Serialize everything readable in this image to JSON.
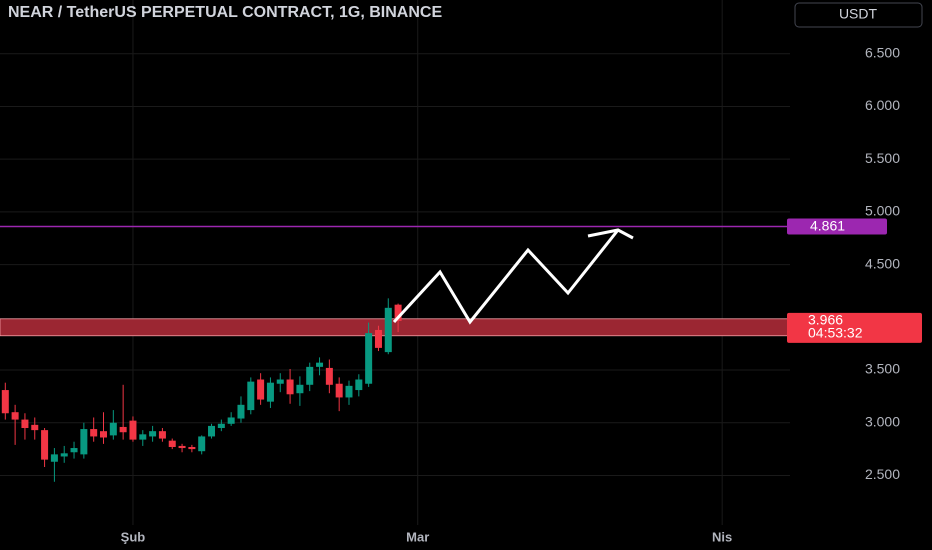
{
  "chart_data": {
    "type": "candlestick",
    "title": "NEAR / TetherUS PERPETUAL CONTRACT, 1G, BINANCE",
    "currency": "USDT",
    "categories": [
      null,
      null,
      null,
      null,
      null,
      null,
      null,
      null,
      null,
      null,
      null,
      null,
      null,
      "Şub",
      null,
      null,
      null,
      null,
      null,
      null,
      null,
      null,
      null,
      null,
      null,
      null,
      null,
      null,
      null,
      null,
      null,
      null,
      null,
      null,
      null,
      null,
      null,
      null,
      null,
      null,
      null,
      null,
      "Mar",
      null,
      null,
      null,
      null,
      null,
      null,
      null,
      null,
      null,
      null,
      null,
      null,
      null,
      null,
      null,
      null,
      null,
      null,
      null,
      null,
      null,
      null,
      null,
      null,
      null,
      null,
      null,
      null,
      null,
      null,
      "Nis"
    ],
    "open": [
      3.31,
      3.1,
      3.03,
      2.98,
      2.93,
      2.63,
      2.68,
      2.72,
      2.7,
      2.94,
      2.92,
      2.88,
      2.96,
      3.02,
      2.84,
      2.87,
      2.92,
      2.83,
      2.78,
      2.77,
      2.73,
      2.87,
      2.95,
      2.99,
      3.04,
      3.12,
      3.41,
      3.2,
      3.37,
      3.41,
      3.28,
      3.36,
      3.53,
      3.52,
      3.37,
      3.24,
      3.31,
      3.37,
      3.88,
      3.67,
      4.12,
      null,
      null,
      null,
      null,
      null,
      null,
      null,
      null,
      null,
      null,
      null,
      null,
      null,
      null,
      null,
      null,
      null,
      null,
      null,
      null,
      null,
      null,
      null,
      null,
      null,
      null,
      null,
      null,
      null,
      null,
      null,
      null,
      null
    ],
    "high": [
      3.38,
      3.17,
      3.09,
      3.05,
      2.95,
      2.76,
      2.78,
      2.82,
      3.0,
      3.05,
      3.1,
      3.12,
      3.36,
      3.06,
      2.93,
      2.97,
      2.95,
      2.85,
      2.8,
      2.79,
      2.88,
      2.99,
      3.03,
      3.1,
      3.25,
      3.43,
      3.47,
      3.43,
      3.47,
      3.51,
      3.44,
      3.57,
      3.62,
      3.6,
      3.43,
      3.4,
      3.46,
      3.95,
      3.92,
      4.18,
      4.13,
      null,
      null,
      null,
      null,
      null,
      null,
      null,
      null,
      null,
      null,
      null,
      null,
      null,
      null,
      null,
      null,
      null,
      null,
      null,
      null,
      null,
      null,
      null,
      null,
      null,
      null,
      null,
      null,
      null,
      null,
      null,
      null,
      null
    ],
    "low": [
      3.03,
      2.79,
      2.84,
      2.84,
      2.58,
      2.44,
      2.62,
      2.66,
      2.66,
      2.82,
      2.8,
      2.84,
      2.84,
      2.82,
      2.78,
      2.82,
      2.82,
      2.75,
      2.72,
      2.72,
      2.7,
      2.85,
      2.92,
      2.97,
      3.0,
      3.08,
      3.17,
      3.14,
      3.29,
      3.18,
      3.16,
      3.3,
      3.45,
      3.28,
      3.11,
      3.17,
      3.25,
      3.34,
      3.68,
      3.65,
      3.86,
      null,
      null,
      null,
      null,
      null,
      null,
      null,
      null,
      null,
      null,
      null,
      null,
      null,
      null,
      null,
      null,
      null,
      null,
      null,
      null,
      null,
      null,
      null,
      null,
      null,
      null,
      null,
      null,
      null,
      null,
      null,
      null,
      null
    ],
    "close": [
      3.09,
      3.03,
      2.95,
      2.93,
      2.65,
      2.7,
      2.71,
      2.76,
      2.94,
      2.87,
      2.86,
      3.0,
      2.91,
      2.84,
      2.89,
      2.92,
      2.85,
      2.77,
      2.76,
      2.75,
      2.87,
      2.97,
      2.99,
      3.05,
      3.17,
      3.39,
      3.22,
      3.38,
      3.41,
      3.27,
      3.36,
      3.53,
      3.57,
      3.36,
      3.24,
      3.35,
      3.41,
      3.85,
      3.71,
      4.09,
      3.966,
      null,
      null,
      null,
      null,
      null,
      null,
      null,
      null,
      null,
      null,
      null,
      null,
      null,
      null,
      null,
      null,
      null,
      null,
      null,
      null,
      null,
      null,
      null,
      null,
      null,
      null,
      null,
      null,
      null,
      null,
      null,
      null,
      null
    ],
    "up_color": "#089981",
    "down_color": "#f23645",
    "ylim": [
      2.03,
      7.01
    ],
    "yticks": [
      {
        "value": 2.5,
        "label": "2.500"
      },
      {
        "value": 3,
        "label": "3.000"
      },
      {
        "value": 3.5,
        "label": "3.500"
      },
      {
        "value": 4.5,
        "label": "4.500"
      },
      {
        "value": 5,
        "label": "5.000"
      },
      {
        "value": 5.5,
        "label": "5.500"
      },
      {
        "value": 6,
        "label": "6.000"
      },
      {
        "value": 6.5,
        "label": "6.500"
      }
    ],
    "grid": true,
    "hline": {
      "value": 4.861,
      "color": "#9c27b0"
    },
    "zone": {
      "low": 3.825,
      "high": 3.986,
      "color": "#9b2632"
    },
    "last_price": {
      "value": 3.966,
      "countdown": "04:53:32",
      "color": "#f23645"
    }
  }
}
